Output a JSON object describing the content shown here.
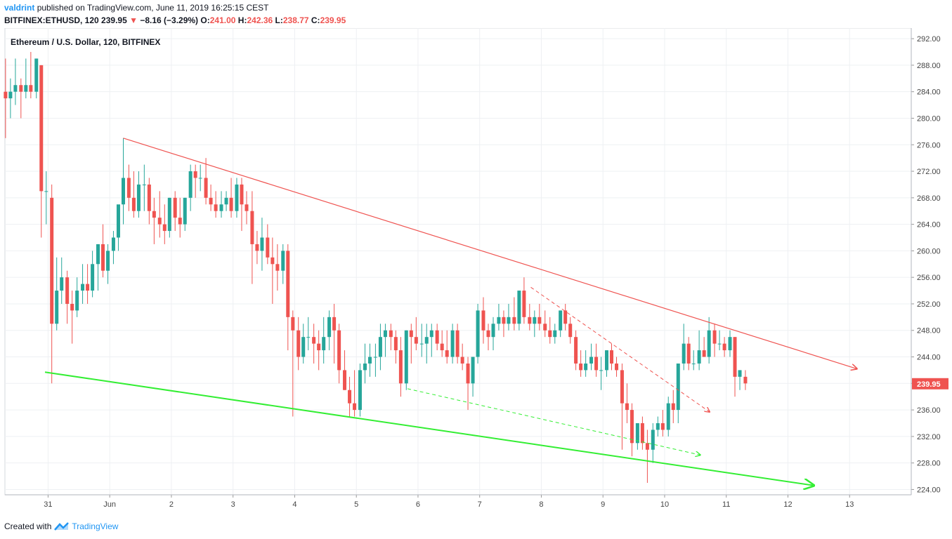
{
  "header": {
    "user": "valdrint",
    "published_text": "published on TradingView.com, June 11, 2019 16:25:15 CEST",
    "symbol_line": "BITFINEX:ETHUSD, 120",
    "last": "239.95",
    "arrow": "▼",
    "change": "−8.16 (−3.29%)",
    "o_label": "O:",
    "o_value": "241.00",
    "h_label": "H:",
    "h_value": "242.36",
    "l_label": "L:",
    "l_value": "238.77",
    "c_label": "C:",
    "c_value": "239.95"
  },
  "footer": {
    "created_text": "Created with",
    "brand": "TradingView"
  },
  "colors": {
    "up": "#26a69a",
    "down": "#ef5350",
    "grid": "#eef0f3",
    "axis_text": "#444444",
    "resistance_line": "#ef5350",
    "support_line": "#33ee33",
    "price_label_bg": "#ef5350"
  },
  "chart_data": {
    "type": "candlestick",
    "title": "Ethereum / U.S. Dollar, 120, BITFINEX",
    "price_axis": {
      "ticks": [
        "292.00",
        "288.00",
        "284.00",
        "280.00",
        "276.00",
        "272.00",
        "268.00",
        "264.00",
        "260.00",
        "256.00",
        "252.00",
        "248.00",
        "244.00",
        "240.00",
        "236.00",
        "232.00",
        "228.00",
        "224.00"
      ],
      "range": [
        223.2,
        293.6
      ],
      "last_price_label": "239.95"
    },
    "time_axis": {
      "labels": [
        {
          "text": "31",
          "day": 0
        },
        {
          "text": "Jun",
          "day": 1
        },
        {
          "text": "2",
          "day": 2
        },
        {
          "text": "3",
          "day": 3
        },
        {
          "text": "4",
          "day": 4
        },
        {
          "text": "5",
          "day": 5
        },
        {
          "text": "6",
          "day": 6
        },
        {
          "text": "7",
          "day": 7
        },
        {
          "text": "8",
          "day": 8
        },
        {
          "text": "9",
          "day": 9
        },
        {
          "text": "10",
          "day": 10
        },
        {
          "text": "11",
          "day": 11
        },
        {
          "text": "12",
          "day": 12
        },
        {
          "text": "13",
          "day": 13
        }
      ],
      "range_days": [
        -0.7,
        14.0
      ]
    },
    "candles_ohlc": [
      [
        -0.69,
        284,
        289,
        277,
        283
      ],
      [
        -0.61,
        283,
        286,
        280,
        284
      ],
      [
        -0.53,
        284,
        289,
        282,
        285
      ],
      [
        -0.44,
        285,
        286,
        280,
        284
      ],
      [
        -0.36,
        284,
        289,
        283,
        285
      ],
      [
        -0.28,
        285,
        290,
        283,
        284
      ],
      [
        -0.19,
        284,
        289,
        283,
        289
      ],
      [
        -0.11,
        288,
        288,
        262,
        269
      ],
      [
        -0.03,
        269,
        272,
        264,
        269
      ],
      [
        0.06,
        268,
        270,
        240,
        249
      ],
      [
        0.14,
        249,
        259,
        248,
        254
      ],
      [
        0.22,
        254,
        259,
        252,
        256
      ],
      [
        0.31,
        256,
        257,
        249,
        252
      ],
      [
        0.39,
        252,
        254,
        246,
        251
      ],
      [
        0.47,
        251,
        256,
        250,
        254
      ],
      [
        0.56,
        254,
        258,
        252,
        255
      ],
      [
        0.64,
        255,
        258,
        252,
        254
      ],
      [
        0.72,
        254,
        260,
        253,
        258
      ],
      [
        0.81,
        258,
        261,
        254,
        261
      ],
      [
        0.89,
        261,
        264,
        256,
        257
      ],
      [
        0.97,
        257,
        261,
        255,
        260
      ],
      [
        1.06,
        260,
        263,
        258,
        262
      ],
      [
        1.14,
        262,
        265,
        260,
        267
      ],
      [
        1.22,
        267,
        277,
        264,
        271
      ],
      [
        1.31,
        271,
        273,
        266,
        268
      ],
      [
        1.39,
        268,
        272,
        265,
        266
      ],
      [
        1.47,
        266,
        272,
        265,
        270
      ],
      [
        1.56,
        270,
        273,
        266,
        270
      ],
      [
        1.64,
        270,
        271,
        264,
        266
      ],
      [
        1.72,
        266,
        268,
        261,
        265
      ],
      [
        1.81,
        265,
        269,
        262,
        264
      ],
      [
        1.89,
        264,
        267,
        261,
        263
      ],
      [
        1.97,
        263,
        268,
        262,
        268
      ],
      [
        2.06,
        268,
        269,
        263,
        265
      ],
      [
        2.14,
        265,
        268,
        262,
        264
      ],
      [
        2.22,
        264,
        268,
        263,
        268
      ],
      [
        2.31,
        268,
        273,
        266,
        272
      ],
      [
        2.39,
        272,
        273,
        268,
        271
      ],
      [
        2.47,
        271,
        273,
        269,
        271
      ],
      [
        2.56,
        271,
        274,
        267,
        268
      ],
      [
        2.64,
        268,
        270,
        266,
        267
      ],
      [
        2.72,
        267,
        269,
        265,
        266
      ],
      [
        2.81,
        266,
        269,
        265,
        267
      ],
      [
        2.89,
        267,
        269,
        266,
        268
      ],
      [
        2.97,
        268,
        271,
        265,
        266
      ],
      [
        3.06,
        266,
        271,
        265,
        270
      ],
      [
        3.14,
        270,
        271,
        263,
        267
      ],
      [
        3.22,
        267,
        269,
        264,
        266
      ],
      [
        3.31,
        266,
        269,
        255,
        261
      ],
      [
        3.39,
        261,
        263,
        258,
        260
      ],
      [
        3.47,
        260,
        265,
        257,
        262
      ],
      [
        3.56,
        262,
        264,
        258,
        259
      ],
      [
        3.64,
        259,
        262,
        252,
        258
      ],
      [
        3.72,
        258,
        261,
        254,
        257
      ],
      [
        3.81,
        257,
        261,
        255,
        260
      ],
      [
        3.89,
        260,
        261,
        245,
        250
      ],
      [
        3.97,
        250,
        251,
        235,
        248
      ],
      [
        4.06,
        248,
        250,
        242,
        244
      ],
      [
        4.14,
        244,
        249,
        243,
        247
      ],
      [
        4.22,
        247,
        250,
        245,
        247
      ],
      [
        4.31,
        247,
        249,
        243,
        246
      ],
      [
        4.39,
        246,
        248,
        242,
        245
      ],
      [
        4.47,
        245,
        250,
        243,
        247
      ],
      [
        4.56,
        247,
        251,
        245,
        250
      ],
      [
        4.64,
        250,
        252,
        243,
        248
      ],
      [
        4.72,
        248,
        249,
        240,
        242
      ],
      [
        4.81,
        242,
        245,
        239,
        239
      ],
      [
        4.89,
        239,
        241,
        235,
        237
      ],
      [
        4.97,
        237,
        242,
        235,
        236
      ],
      [
        5.06,
        236,
        243,
        235,
        242
      ],
      [
        5.14,
        242,
        246,
        240,
        243
      ],
      [
        5.22,
        243,
        246,
        241,
        244
      ],
      [
        5.31,
        244,
        246,
        241,
        244
      ],
      [
        5.39,
        244,
        249,
        242,
        247
      ],
      [
        5.47,
        247,
        249,
        244,
        248
      ],
      [
        5.56,
        248,
        249,
        245,
        247
      ],
      [
        5.64,
        247,
        248,
        243,
        245
      ],
      [
        5.72,
        245,
        247,
        238,
        240
      ],
      [
        5.81,
        240,
        248,
        239,
        248
      ],
      [
        5.89,
        248,
        249,
        243,
        247
      ],
      [
        5.97,
        247,
        250,
        245,
        246
      ],
      [
        6.06,
        246,
        249,
        244,
        246
      ],
      [
        6.14,
        246,
        249,
        243,
        247
      ],
      [
        6.22,
        247,
        249,
        244,
        248
      ],
      [
        6.31,
        248,
        249,
        245,
        246
      ],
      [
        6.39,
        246,
        248,
        244,
        245
      ],
      [
        6.47,
        245,
        248,
        243,
        244
      ],
      [
        6.56,
        244,
        249,
        243,
        248
      ],
      [
        6.64,
        248,
        249,
        243,
        244
      ],
      [
        6.72,
        244,
        246,
        242,
        243
      ],
      [
        6.81,
        243,
        244,
        236,
        240
      ],
      [
        6.89,
        240,
        244,
        238,
        244
      ],
      [
        6.97,
        244,
        252,
        243,
        251
      ],
      [
        7.06,
        251,
        253,
        246,
        248
      ],
      [
        7.14,
        248,
        249,
        245,
        247
      ],
      [
        7.22,
        247,
        250,
        245,
        249
      ],
      [
        7.31,
        249,
        252,
        248,
        250
      ],
      [
        7.39,
        250,
        251,
        247,
        249
      ],
      [
        7.47,
        249,
        252,
        248,
        250
      ],
      [
        7.56,
        250,
        253,
        248,
        249
      ],
      [
        7.64,
        249,
        254,
        248,
        254
      ],
      [
        7.72,
        254,
        256,
        249,
        250
      ],
      [
        7.81,
        250,
        252,
        248,
        249
      ],
      [
        7.89,
        249,
        251,
        247,
        250
      ],
      [
        7.97,
        250,
        252,
        248,
        249
      ],
      [
        8.06,
        249,
        251,
        247,
        248
      ],
      [
        8.14,
        248,
        250,
        246,
        247
      ],
      [
        8.22,
        247,
        249,
        246,
        248
      ],
      [
        8.31,
        248,
        251,
        247,
        251
      ],
      [
        8.39,
        251,
        252,
        248,
        249
      ],
      [
        8.47,
        249,
        250,
        246,
        247
      ],
      [
        8.56,
        247,
        248,
        242,
        243
      ],
      [
        8.64,
        243,
        245,
        241,
        242
      ],
      [
        8.72,
        242,
        245,
        241,
        243
      ],
      [
        8.81,
        243,
        246,
        242,
        244
      ],
      [
        8.89,
        244,
        246,
        241,
        242
      ],
      [
        8.97,
        242,
        244,
        239,
        242
      ],
      [
        9.06,
        242,
        245,
        241,
        245
      ],
      [
        9.14,
        245,
        246,
        242,
        243
      ],
      [
        9.22,
        243,
        244,
        241,
        242
      ],
      [
        9.31,
        242,
        243,
        230,
        237
      ],
      [
        9.39,
        237,
        240,
        234,
        236
      ],
      [
        9.47,
        236,
        237,
        229,
        231
      ],
      [
        9.56,
        231,
        234,
        230,
        234
      ],
      [
        9.64,
        234,
        235,
        230,
        231
      ],
      [
        9.72,
        231,
        233,
        225,
        230
      ],
      [
        9.81,
        230,
        234,
        228,
        233
      ],
      [
        9.89,
        233,
        235,
        232,
        234
      ],
      [
        9.97,
        234,
        236,
        232,
        233
      ],
      [
        10.06,
        233,
        238,
        232,
        237
      ],
      [
        10.14,
        237,
        239,
        234,
        236
      ],
      [
        10.22,
        236,
        242,
        234,
        243
      ],
      [
        10.31,
        243,
        249,
        242,
        246
      ],
      [
        10.39,
        246,
        247,
        242,
        243
      ],
      [
        10.47,
        243,
        245,
        242,
        243
      ],
      [
        10.56,
        243,
        248,
        242,
        245
      ],
      [
        10.64,
        245,
        247,
        244,
        244
      ],
      [
        10.72,
        244,
        250,
        243,
        248
      ],
      [
        10.81,
        248,
        249,
        244,
        246
      ],
      [
        10.89,
        246,
        248,
        245,
        246
      ],
      [
        10.97,
        246,
        247,
        244,
        245
      ],
      [
        11.06,
        245,
        248,
        244,
        247
      ],
      [
        11.14,
        247,
        247,
        238,
        241
      ],
      [
        11.22,
        241,
        242,
        239,
        242
      ],
      [
        11.31,
        241,
        242,
        239,
        240
      ]
    ],
    "lines": [
      {
        "name": "resistance",
        "style": "solid",
        "color": "red",
        "from": [
          1.22,
          277.0
        ],
        "to": [
          13.12,
          242.2
        ],
        "arrow": true
      },
      {
        "name": "support",
        "style": "solid",
        "color": "green",
        "from": [
          -0.05,
          241.7
        ],
        "to": [
          12.42,
          224.6
        ],
        "arrow": true
      },
      {
        "name": "short-resistance",
        "style": "dashed",
        "color": "red",
        "from": [
          7.83,
          254.5
        ],
        "to": [
          10.73,
          235.7
        ],
        "arrow": true
      },
      {
        "name": "short-support",
        "style": "dashed",
        "color": "green",
        "from": [
          5.83,
          239.2
        ],
        "to": [
          10.58,
          229.2
        ],
        "arrow": true
      }
    ],
    "grid": true
  }
}
